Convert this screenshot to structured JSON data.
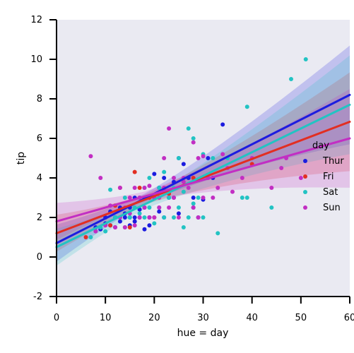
{
  "chart_data": {
    "type": "scatter",
    "title": "",
    "xlabel": "hue = day",
    "ylabel": "tip",
    "xlim": [
      0,
      60
    ],
    "ylim": [
      -2,
      12
    ],
    "xticks": [
      0,
      10,
      20,
      30,
      40,
      50,
      60
    ],
    "yticks": [
      -2,
      0,
      2,
      4,
      6,
      8,
      10,
      12
    ],
    "grid": false,
    "background": "#eaeaf2",
    "legend": {
      "title": "day",
      "placement": "right",
      "entries": [
        "Thur",
        "Fri",
        "Sat",
        "Sun"
      ]
    },
    "series": [
      {
        "name": "Thur",
        "color": "#1c1cdf",
        "fit": {
          "intercept": 0.7,
          "slope": 0.125
        },
        "points": [
          [
            8,
            1.5
          ],
          [
            9,
            1.4
          ],
          [
            10,
            1.7
          ],
          [
            10,
            2.0
          ],
          [
            11,
            1.6
          ],
          [
            11,
            2.3
          ],
          [
            12,
            1.5
          ],
          [
            12,
            2.0
          ],
          [
            13,
            1.8
          ],
          [
            13,
            2.5
          ],
          [
            14,
            2.0
          ],
          [
            14,
            2.2
          ],
          [
            15,
            1.6
          ],
          [
            15,
            2.0
          ],
          [
            15,
            2.5
          ],
          [
            16,
            2.0
          ],
          [
            16,
            3.0
          ],
          [
            16,
            1.8
          ],
          [
            17,
            2.0
          ],
          [
            17,
            2.4
          ],
          [
            18,
            3.0
          ],
          [
            18,
            2.5
          ],
          [
            18,
            1.4
          ],
          [
            19,
            1.6
          ],
          [
            19,
            2.0
          ],
          [
            20,
            4.2
          ],
          [
            20,
            3.0
          ],
          [
            21,
            3.5
          ],
          [
            21,
            2.3
          ],
          [
            22,
            4.0
          ],
          [
            22,
            2.0
          ],
          [
            23,
            3.0
          ],
          [
            24,
            3.8
          ],
          [
            24,
            3.0
          ],
          [
            25,
            5.0
          ],
          [
            25,
            2.2
          ],
          [
            26,
            4.7
          ],
          [
            27,
            4.0
          ],
          [
            28,
            3.0
          ],
          [
            28,
            2.5
          ],
          [
            29,
            2.0
          ],
          [
            30,
            2.9
          ],
          [
            31,
            5.0
          ],
          [
            32,
            4.0
          ],
          [
            34,
            6.7
          ]
        ]
      },
      {
        "name": "Fri",
        "color": "#e22e22",
        "fit": {
          "intercept": 1.2,
          "slope": 0.094
        },
        "points": [
          [
            6,
            1.0
          ],
          [
            11,
            1.6
          ],
          [
            12,
            2.6
          ],
          [
            13,
            3.5
          ],
          [
            15,
            1.5
          ],
          [
            16,
            4.3
          ],
          [
            17,
            3.5
          ],
          [
            19,
            3.0
          ],
          [
            20,
            2.0
          ],
          [
            22,
            3.5
          ],
          [
            23,
            3.2
          ],
          [
            28,
            4.0
          ],
          [
            40,
            4.7
          ]
        ]
      },
      {
        "name": "Sat",
        "color": "#22c3c3",
        "fit": {
          "intercept": 0.5,
          "slope": 0.12
        },
        "points": [
          [
            7,
            1.0
          ],
          [
            9,
            1.5
          ],
          [
            10,
            1.3
          ],
          [
            11,
            3.4
          ],
          [
            12,
            2.0
          ],
          [
            13,
            2.0
          ],
          [
            14,
            3.0
          ],
          [
            14,
            1.5
          ],
          [
            15,
            2.0
          ],
          [
            16,
            2.5
          ],
          [
            17,
            3.0
          ],
          [
            17,
            2.2
          ],
          [
            18,
            2.0
          ],
          [
            18,
            3.5
          ],
          [
            19,
            4.0
          ],
          [
            19,
            2.5
          ],
          [
            20,
            3.0
          ],
          [
            20,
            1.7
          ],
          [
            21,
            3.5
          ],
          [
            21,
            2.5
          ],
          [
            22,
            4.3
          ],
          [
            22,
            2.0
          ],
          [
            23,
            3.0
          ],
          [
            24,
            2.0
          ],
          [
            24,
            3.5
          ],
          [
            25,
            5.0
          ],
          [
            25,
            2.5
          ],
          [
            26,
            1.5
          ],
          [
            26,
            3.3
          ],
          [
            27,
            6.5
          ],
          [
            27,
            2.0
          ],
          [
            28,
            6.0
          ],
          [
            28,
            2.7
          ],
          [
            29,
            3.0
          ],
          [
            30,
            5.2
          ],
          [
            30,
            2.0
          ],
          [
            32,
            5.0
          ],
          [
            33,
            1.2
          ],
          [
            35,
            5.0
          ],
          [
            38,
            3.0
          ],
          [
            39,
            7.6
          ],
          [
            39,
            3.0
          ],
          [
            44,
            2.5
          ],
          [
            48,
            9.0
          ],
          [
            51,
            10.0
          ]
        ]
      },
      {
        "name": "Sun",
        "color": "#c22ec3",
        "fit": {
          "intercept": 1.8,
          "slope": 0.07
        },
        "points": [
          [
            7,
            5.1
          ],
          [
            8,
            1.3
          ],
          [
            9,
            4.0
          ],
          [
            10,
            1.6
          ],
          [
            11,
            2.6
          ],
          [
            12,
            1.5
          ],
          [
            13,
            2.0
          ],
          [
            13,
            3.5
          ],
          [
            14,
            2.5
          ],
          [
            14,
            1.5
          ],
          [
            15,
            3.0
          ],
          [
            15,
            2.2
          ],
          [
            16,
            3.5
          ],
          [
            16,
            1.6
          ],
          [
            17,
            2.0
          ],
          [
            17,
            3.0
          ],
          [
            18,
            3.5
          ],
          [
            18,
            2.5
          ],
          [
            19,
            2.0
          ],
          [
            19,
            3.6
          ],
          [
            20,
            3.0
          ],
          [
            20,
            2.0
          ],
          [
            21,
            2.5
          ],
          [
            21,
            3.0
          ],
          [
            22,
            5.0
          ],
          [
            22,
            3.5
          ],
          [
            23,
            6.5
          ],
          [
            23,
            2.5
          ],
          [
            24,
            4.0
          ],
          [
            24,
            3.0
          ],
          [
            25,
            2.0
          ],
          [
            26,
            3.8
          ],
          [
            26,
            4.0
          ],
          [
            27,
            3.5
          ],
          [
            28,
            5.8
          ],
          [
            28,
            2.5
          ],
          [
            29,
            5.0
          ],
          [
            29,
            2.0
          ],
          [
            30,
            5.1
          ],
          [
            30,
            3.0
          ],
          [
            31,
            4.0
          ],
          [
            32,
            3.0
          ],
          [
            33,
            3.5
          ],
          [
            34,
            5.2
          ],
          [
            35,
            4.5
          ],
          [
            36,
            3.3
          ],
          [
            38,
            4.0
          ],
          [
            40,
            5.0
          ],
          [
            44,
            3.5
          ],
          [
            46,
            4.5
          ],
          [
            47,
            5.0
          ],
          [
            50,
            4.0
          ]
        ]
      }
    ]
  }
}
